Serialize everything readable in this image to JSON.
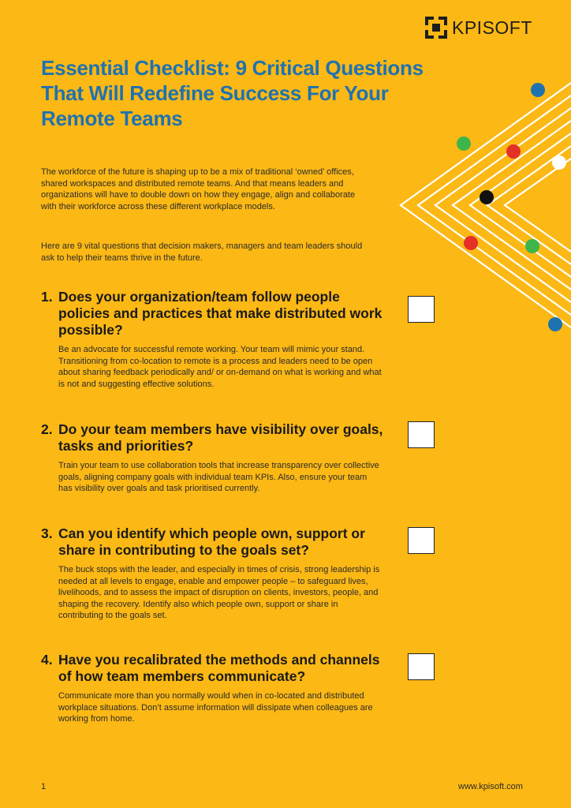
{
  "brand": {
    "name": "KPISOFT",
    "colors": {
      "background": "#fcb814",
      "title": "#1f72b0",
      "text": "#2b2b2b"
    }
  },
  "title": "Essential Checklist: 9 Critical Questions That Will Redefine Success For Your Remote Teams",
  "intro": [
    "The workforce of the future is shaping up to be a mix of traditional ‘owned’ offices, shared workspaces and distributed remote teams. And that means leaders and organizations will have to double down on how they engage, align and collaborate with their workforce across these different workplace models.",
    "Here are 9 vital questions that decision makers, managers and team leaders should ask to help their teams thrive in the future."
  ],
  "questions": [
    {
      "number": "1.",
      "title": "Does your organization/team follow people policies and practices that make distributed work possible?",
      "body": "Be an advocate for successful remote working. Your team will mimic your stand. Transitioning from co-location to remote is a process and leaders need to be open about sharing feedback periodically and/ or on-demand on what is working and what is not and suggesting effective solutions.",
      "checked": false
    },
    {
      "number": "2.",
      "title": "Do your team members have visibility over goals, tasks and priorities?",
      "body": "Train your team to use collaboration tools that increase transparency over collective goals, aligning company goals with individual team KPIs. Also, ensure your team has visibility over goals and task prioritised currently.",
      "checked": false
    },
    {
      "number": "3.",
      "title": "Can you identify which people own, support or share in contributing to the goals set?",
      "body": "The buck stops with the leader, and especially in times of crisis, strong leadership is needed at all levels to engage, enable and empower people – to safeguard lives, livelihoods, and to assess the impact of disruption on clients, investors, people, and shaping the recovery. Identify also which people own, support or share in contributing to the goals set.",
      "checked": false
    },
    {
      "number": "4.",
      "title": "Have you recalibrated the methods and channels of how team members communicate?",
      "body": "Communicate more than you normally would when in co-located and distributed workplace situations. Don’t assume information will dissipate when colleagues are working from home.",
      "checked": false
    }
  ],
  "footer": {
    "page": "1",
    "url": "www.kpisoft.com"
  },
  "decoration": {
    "line_color": "#ffffff",
    "dot_colors": [
      "#1f72b0",
      "#3db54a",
      "#e53027",
      "#ffffff",
      "#111111",
      "#e53027",
      "#3db54a",
      "#1f72b0"
    ]
  }
}
